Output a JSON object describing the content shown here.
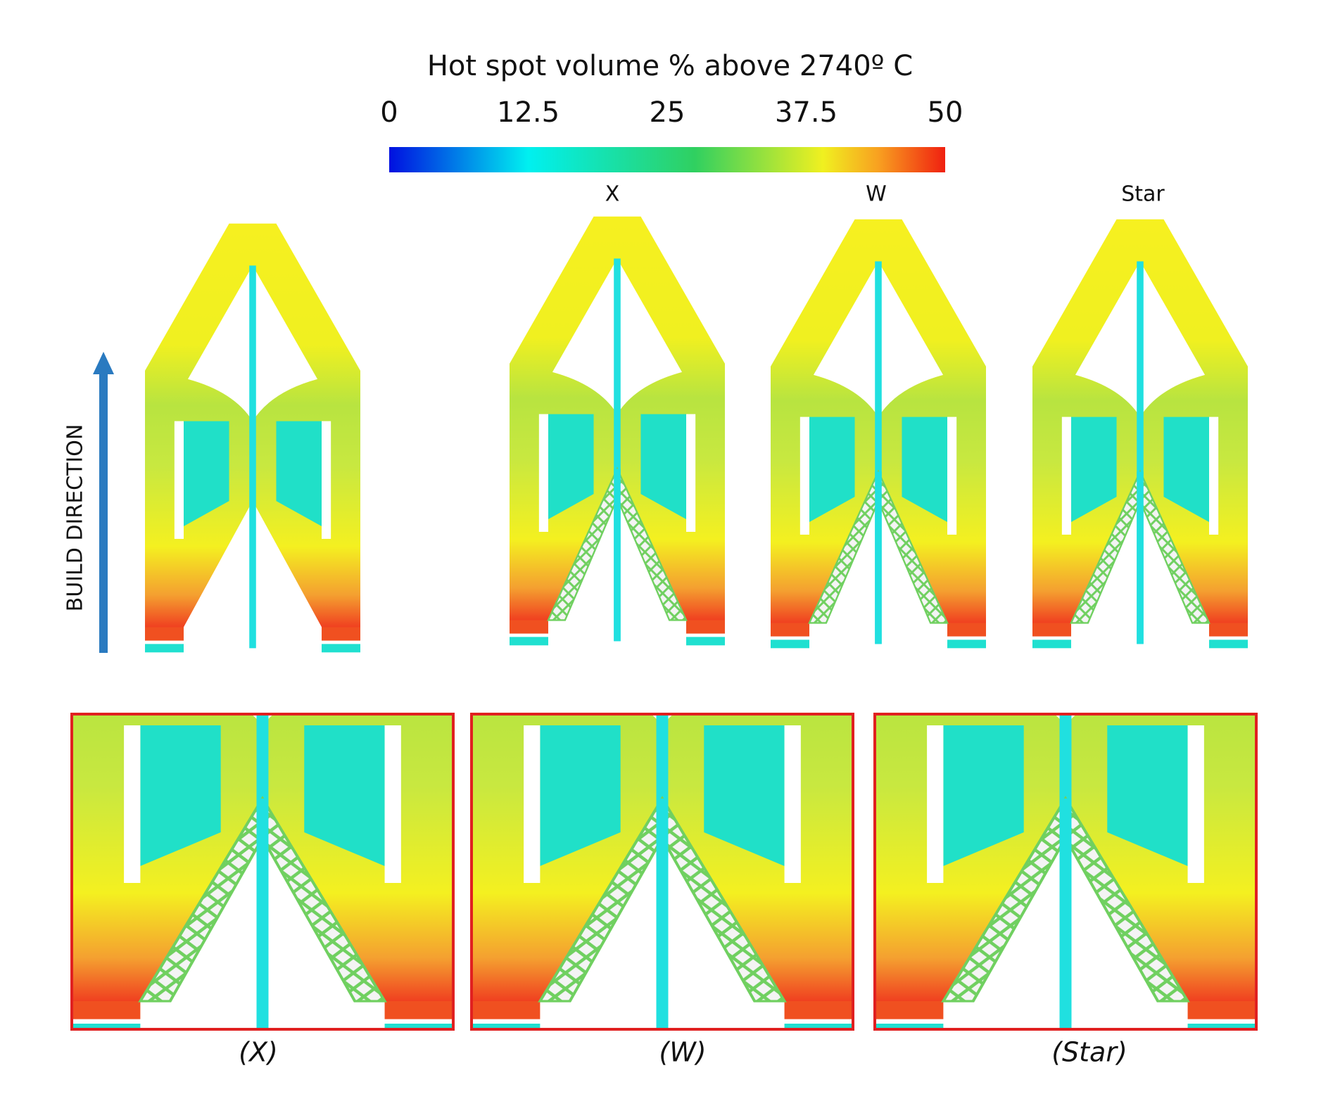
{
  "colorbar": {
    "title": "Hot spot volume % above 2740º C",
    "lim": [
      0,
      50
    ],
    "ticks": [
      0,
      12.5,
      25,
      37.5,
      50
    ]
  },
  "build_direction": "BUILD DIRECTION",
  "panel_labels": [
    "X",
    "W",
    "Star"
  ],
  "zoom_captions": [
    "(X)",
    "(W)",
    "(Star)"
  ]
}
